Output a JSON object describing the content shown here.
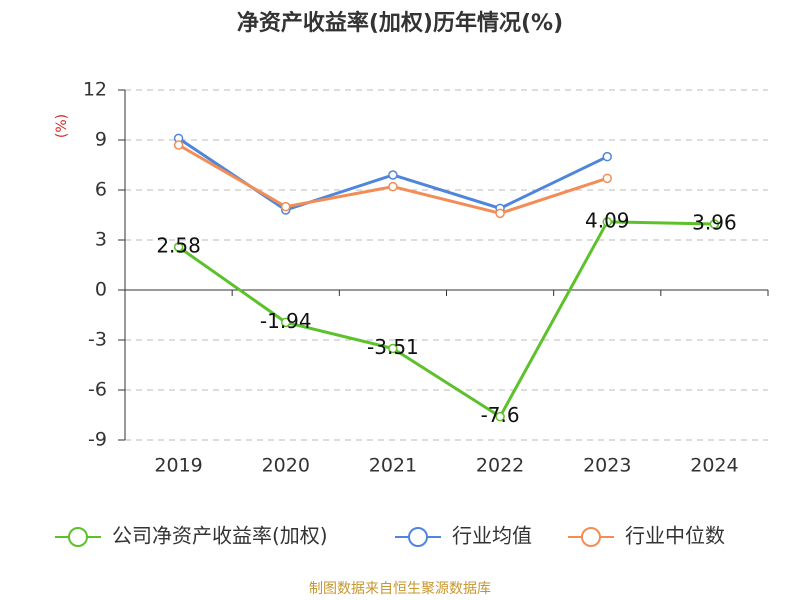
{
  "chart_data": {
    "type": "line",
    "title": "净资产收益率(加权)历年情况(%)",
    "y_label": "(%)",
    "source": "制图数据来自恒生聚源数据库",
    "categories": [
      "2019",
      "2020",
      "2021",
      "2022",
      "2023",
      "2024"
    ],
    "series": [
      {
        "name": "公司净资产收益率(加权)",
        "color": "#5cc12a",
        "values": [
          2.58,
          -1.94,
          -3.51,
          -7.6,
          4.09,
          3.96
        ],
        "show_labels": true
      },
      {
        "name": "行业均值",
        "color": "#4f86dc",
        "values": [
          9.1,
          4.8,
          6.9,
          4.9,
          8.0,
          null
        ]
      },
      {
        "name": "行业中位数",
        "color": "#f38d57",
        "values": [
          8.7,
          5.0,
          6.2,
          4.6,
          6.7,
          null
        ]
      }
    ],
    "ylim": [
      -9,
      12
    ],
    "yticks": [
      -9,
      -6,
      -3,
      0,
      3,
      6,
      9,
      12
    ],
    "grid": true
  }
}
